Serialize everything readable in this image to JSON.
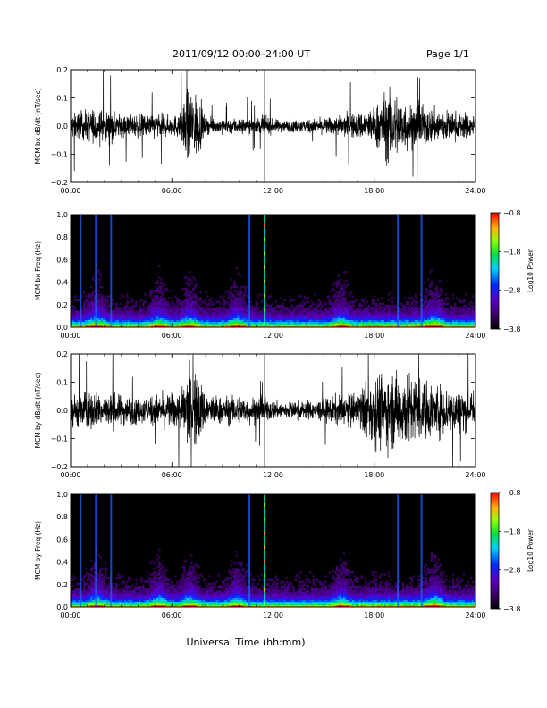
{
  "header": {
    "title": "2011/09/12  00:00–24:00 UT",
    "page": "Page 1/1"
  },
  "chart_data": [
    {
      "type": "line",
      "ylabel": "MCM bx dB/dt (nT/sec)",
      "ylim": [
        -0.2,
        0.2
      ],
      "yticks": [
        "−0.2",
        "−0.1",
        "0.0",
        "0.1",
        "0.2"
      ],
      "xlim": [
        0,
        24
      ],
      "xticks": [
        "00:00",
        "06:00",
        "12:00",
        "18:00",
        "24:00"
      ],
      "envelope": {
        "x": [
          0,
          1,
          1.5,
          2,
          3,
          4,
          5,
          6,
          6.5,
          7,
          7.3,
          7.6,
          8,
          9,
          10,
          11,
          11.5,
          12,
          13,
          14,
          15,
          16,
          17,
          17.5,
          18,
          18.5,
          19,
          20,
          21,
          22,
          23,
          24
        ],
        "amp": [
          0.07,
          0.08,
          0.1,
          0.08,
          0.06,
          0.06,
          0.07,
          0.05,
          0.07,
          0.2,
          0.2,
          0.14,
          0.04,
          0.04,
          0.045,
          0.04,
          0.05,
          0.035,
          0.03,
          0.035,
          0.04,
          0.055,
          0.07,
          0.08,
          0.1,
          0.16,
          0.2,
          0.12,
          0.1,
          0.09,
          0.07,
          0.06
        ]
      }
    },
    {
      "type": "heatmap",
      "ylabel": "MCM bx Freq (Hz)",
      "ylim": [
        0,
        1
      ],
      "yticks": [
        "0.0",
        "0.2",
        "0.4",
        "0.6",
        "0.8",
        "1.0"
      ],
      "xlim": [
        0,
        24
      ],
      "xticks": [
        "00:00",
        "06:00",
        "12:00",
        "18:00",
        "24:00"
      ],
      "colorbar": {
        "label": "Log10 Power",
        "ticks": [
          "−0.8",
          "−1.8",
          "−2.8",
          "−3.8"
        ],
        "range": [
          -3.8,
          -0.8
        ]
      },
      "lines_hours": [
        0.6,
        1.5,
        2.4,
        10.6,
        11.5,
        19.4,
        20.8
      ],
      "bursts_hours": [
        1.5,
        5.2,
        7.0,
        9.8,
        16.0,
        21.5
      ]
    },
    {
      "type": "line",
      "ylabel": "MCM by dB/dt (nT/sec)",
      "ylim": [
        -0.2,
        0.2
      ],
      "yticks": [
        "−0.2",
        "−0.1",
        "0.0",
        "0.1",
        "0.2"
      ],
      "xlim": [
        0,
        24
      ],
      "xticks": [
        "00:00",
        "06:00",
        "12:00",
        "18:00",
        "24:00"
      ],
      "envelope": {
        "x": [
          0,
          1,
          2,
          3,
          4,
          5,
          6,
          6.5,
          7,
          7.5,
          8,
          9,
          10,
          11,
          12,
          13,
          14,
          15,
          16,
          17,
          18,
          18.5,
          19,
          20,
          21,
          22,
          23,
          24
        ],
        "amp": [
          0.08,
          0.1,
          0.09,
          0.08,
          0.07,
          0.08,
          0.09,
          0.1,
          0.2,
          0.2,
          0.09,
          0.07,
          0.08,
          0.07,
          0.05,
          0.045,
          0.05,
          0.06,
          0.08,
          0.09,
          0.2,
          0.2,
          0.2,
          0.2,
          0.16,
          0.13,
          0.12,
          0.11
        ]
      }
    },
    {
      "type": "heatmap",
      "ylabel": "MCM by Freq (Hz)",
      "ylim": [
        0,
        1
      ],
      "yticks": [
        "0.0",
        "0.2",
        "0.4",
        "0.6",
        "0.8",
        "1.0"
      ],
      "xlim": [
        0,
        24
      ],
      "xticks": [
        "00:00",
        "06:00",
        "12:00",
        "18:00",
        "24:00"
      ],
      "colorbar": {
        "label": "Log10 Power",
        "ticks": [
          "−0.8",
          "−1.8",
          "−2.8",
          "−3.8"
        ],
        "range": [
          -3.8,
          -0.8
        ]
      },
      "lines_hours": [
        0.6,
        1.5,
        2.4,
        10.6,
        11.5,
        19.4,
        20.8
      ],
      "bursts_hours": [
        1.5,
        5.2,
        7.0,
        9.8,
        16.0,
        21.5
      ]
    }
  ],
  "xlabel": "Universal Time (hh:mm)"
}
